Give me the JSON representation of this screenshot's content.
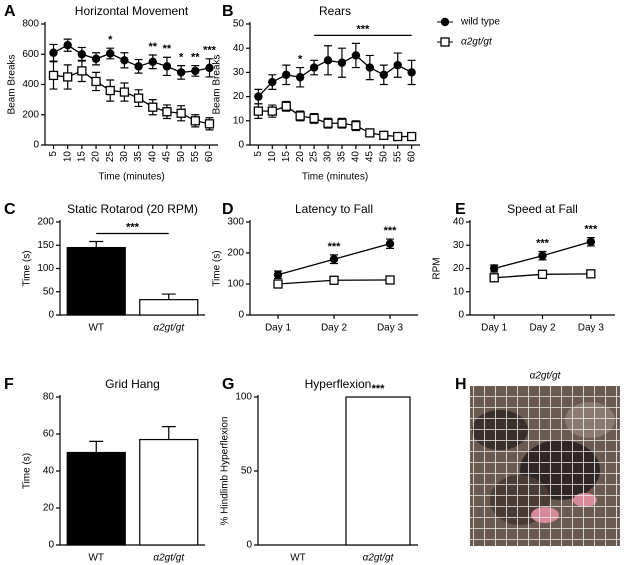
{
  "chart_data": [
    {
      "type": "line",
      "panel": "A",
      "title": "Horizontal Movement",
      "xlabel": "Time (minutes)",
      "ylabel": "Beam Breaks",
      "x": [
        5,
        10,
        15,
        20,
        25,
        30,
        35,
        40,
        45,
        50,
        55,
        60
      ],
      "xlim": [
        2,
        63
      ],
      "xticks": [
        5,
        10,
        15,
        20,
        25,
        30,
        35,
        40,
        45,
        50,
        55,
        60
      ],
      "ylim": [
        0,
        800
      ],
      "yticks": [
        0,
        200,
        400,
        600,
        800
      ],
      "series": [
        {
          "color": "#000000",
          "marker": "circle",
          "values": [
            610,
            660,
            600,
            570,
            605,
            560,
            520,
            550,
            520,
            480,
            490,
            510
          ],
          "errors": [
            55,
            40,
            45,
            40,
            35,
            50,
            45,
            45,
            60,
            45,
            35,
            60
          ]
        },
        {
          "color": "#000000",
          "marker": "square",
          "values": [
            460,
            450,
            490,
            420,
            360,
            350,
            310,
            250,
            220,
            210,
            160,
            140
          ],
          "errors": [
            90,
            80,
            70,
            60,
            70,
            60,
            55,
            50,
            45,
            50,
            40,
            40
          ]
        }
      ],
      "annotations": [
        {
          "x": 25,
          "text": "*"
        },
        {
          "x": 40,
          "text": "**"
        },
        {
          "x": 45,
          "text": "**"
        },
        {
          "x": 50,
          "text": "*"
        },
        {
          "x": 55,
          "text": "**"
        },
        {
          "x": 60,
          "text": "***"
        }
      ]
    },
    {
      "type": "line",
      "panel": "B",
      "title": "Rears",
      "xlabel": "Time (minutes)",
      "ylabel": "Beam Breaks",
      "x": [
        5,
        10,
        15,
        20,
        25,
        30,
        35,
        40,
        45,
        50,
        55,
        60
      ],
      "xlim": [
        2,
        63
      ],
      "xticks": [
        5,
        10,
        15,
        20,
        25,
        30,
        35,
        40,
        45,
        50,
        55,
        60
      ],
      "ylim": [
        0,
        50
      ],
      "yticks": [
        0,
        10,
        20,
        30,
        40,
        50
      ],
      "legend": "right",
      "series": [
        {
          "name": "wild type",
          "color": "#000000",
          "marker": "circle",
          "values": [
            20,
            26,
            29,
            28,
            32,
            35,
            34,
            37,
            32,
            29,
            33,
            30
          ],
          "errors": [
            3,
            3,
            4,
            4,
            3,
            6,
            6,
            5,
            5,
            4,
            5,
            5
          ]
        },
        {
          "name": "α2gt/gt",
          "color": "#000000",
          "marker": "square",
          "values": [
            14,
            14,
            16,
            12,
            11,
            9,
            9,
            8,
            5,
            4,
            3.5,
            3.5
          ],
          "errors": [
            3,
            2.5,
            2,
            2,
            2,
            2,
            2,
            2,
            1.5,
            1.5,
            1,
            1.5
          ]
        }
      ],
      "annotations": [
        {
          "x": 20,
          "text": "*"
        },
        {
          "x": [
            25,
            60
          ],
          "text": "***"
        }
      ]
    },
    {
      "type": "bar",
      "panel": "C",
      "title": "Static Rotarod (20 RPM)",
      "ylabel": "Time (s)",
      "categories": [
        "WT",
        "α2gt/gt"
      ],
      "values": [
        145,
        33
      ],
      "errors": [
        13,
        12
      ],
      "colors": [
        "#000000",
        "#ffffff"
      ],
      "ylim": [
        0,
        200
      ],
      "yticks": [
        0,
        50,
        100,
        150,
        200
      ],
      "annotations": [
        {
          "x": [
            "WT",
            "α2gt/gt"
          ],
          "text": "***"
        }
      ]
    },
    {
      "type": "line",
      "panel": "D",
      "title": "Latency to Fall",
      "ylabel": "Time (s)",
      "categories": [
        "Day 1",
        "Day 2",
        "Day 3"
      ],
      "ylim": [
        0,
        300
      ],
      "yticks": [
        0,
        100,
        200,
        300
      ],
      "series": [
        {
          "color": "#000000",
          "marker": "circle",
          "values": [
            130,
            180,
            230
          ],
          "errors": [
            12,
            14,
            15
          ]
        },
        {
          "color": "#000000",
          "marker": "square",
          "values": [
            100,
            112,
            113
          ],
          "errors": [
            6,
            8,
            12
          ]
        }
      ],
      "annotations": [
        {
          "x": "Day 2",
          "text": "***"
        },
        {
          "x": "Day 3",
          "text": "***"
        }
      ]
    },
    {
      "type": "line",
      "panel": "E",
      "title": "Speed at Fall",
      "ylabel": "RPM",
      "categories": [
        "Day 1",
        "Day 2",
        "Day 3"
      ],
      "ylim": [
        0,
        40
      ],
      "yticks": [
        0,
        10,
        20,
        30,
        40
      ],
      "series": [
        {
          "color": "#000000",
          "marker": "circle",
          "values": [
            20,
            25.5,
            31.5
          ],
          "errors": [
            1.5,
            1.8,
            1.8
          ]
        },
        {
          "color": "#000000",
          "marker": "square",
          "values": [
            16,
            17.5,
            17.7
          ],
          "errors": [
            0.8,
            1,
            1.5
          ]
        }
      ],
      "annotations": [
        {
          "x": "Day 2",
          "text": "***"
        },
        {
          "x": "Day 3",
          "text": "***"
        }
      ]
    },
    {
      "type": "bar",
      "panel": "F",
      "title": "Grid Hang",
      "ylabel": "Time (s)",
      "categories": [
        "WT",
        "α2gt/gt"
      ],
      "values": [
        50,
        57
      ],
      "errors": [
        6,
        7
      ],
      "colors": [
        "#000000",
        "#ffffff"
      ],
      "ylim": [
        0,
        80
      ],
      "yticks": [
        0,
        20,
        40,
        60,
        80
      ]
    },
    {
      "type": "bar",
      "panel": "G",
      "title": "Hyperflexion",
      "ylabel": "% Hindlimb Hyperflexion",
      "categories": [
        "WT",
        "α2gt/gt"
      ],
      "values": [
        0,
        100
      ],
      "colors": [
        "#000000",
        "#ffffff"
      ],
      "ylim": [
        0,
        100
      ],
      "yticks": [
        0,
        50,
        100
      ],
      "annotations": [
        {
          "x": "α2gt/gt",
          "text": "***"
        }
      ]
    },
    {
      "type": "image",
      "panel": "H",
      "title": "α2gt/gt"
    }
  ]
}
